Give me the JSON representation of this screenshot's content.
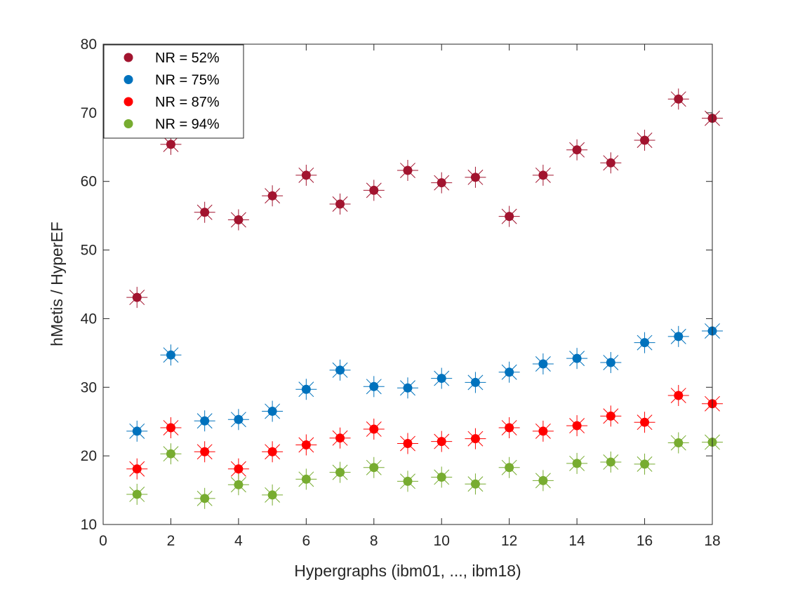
{
  "chart_data": {
    "type": "scatter",
    "title": "",
    "xlabel": "Hypergraphs (ibm01, ..., ibm18)",
    "ylabel": "hMetis / HyperEF",
    "xlim": [
      0,
      18
    ],
    "ylim": [
      10,
      80
    ],
    "xticks": [
      0,
      2,
      4,
      6,
      8,
      10,
      12,
      14,
      16,
      18
    ],
    "yticks": [
      10,
      20,
      30,
      40,
      50,
      60,
      70,
      80
    ],
    "grid": false,
    "legend_position": "top-left",
    "x": [
      1,
      2,
      3,
      4,
      5,
      6,
      7,
      8,
      9,
      10,
      11,
      12,
      13,
      14,
      15,
      16,
      17,
      18
    ],
    "series": [
      {
        "name": "NR = 52%",
        "color": "#A2142F",
        "values": [
          43.1,
          65.4,
          55.5,
          54.4,
          57.9,
          60.9,
          56.7,
          58.7,
          61.6,
          59.8,
          60.6,
          54.9,
          60.9,
          64.6,
          62.7,
          66.0,
          72.0,
          69.2
        ]
      },
      {
        "name": "NR = 75%",
        "color": "#0072BD",
        "values": [
          23.6,
          34.7,
          25.1,
          25.3,
          26.5,
          29.7,
          32.5,
          30.1,
          29.9,
          31.3,
          30.7,
          32.2,
          33.4,
          34.2,
          33.6,
          36.5,
          37.4,
          38.2
        ]
      },
      {
        "name": "NR = 87%",
        "color": "#FF0000",
        "values": [
          18.1,
          24.1,
          20.6,
          18.1,
          20.6,
          21.6,
          22.6,
          23.9,
          21.8,
          22.1,
          22.5,
          24.1,
          23.6,
          24.4,
          25.8,
          24.9,
          28.8,
          27.6
        ]
      },
      {
        "name": "NR = 94%",
        "color": "#77AC30",
        "values": [
          14.4,
          20.3,
          13.8,
          15.8,
          14.3,
          16.6,
          17.6,
          18.3,
          16.3,
          16.9,
          15.9,
          18.3,
          16.4,
          18.9,
          19.1,
          18.8,
          21.9,
          22.0
        ]
      }
    ]
  }
}
